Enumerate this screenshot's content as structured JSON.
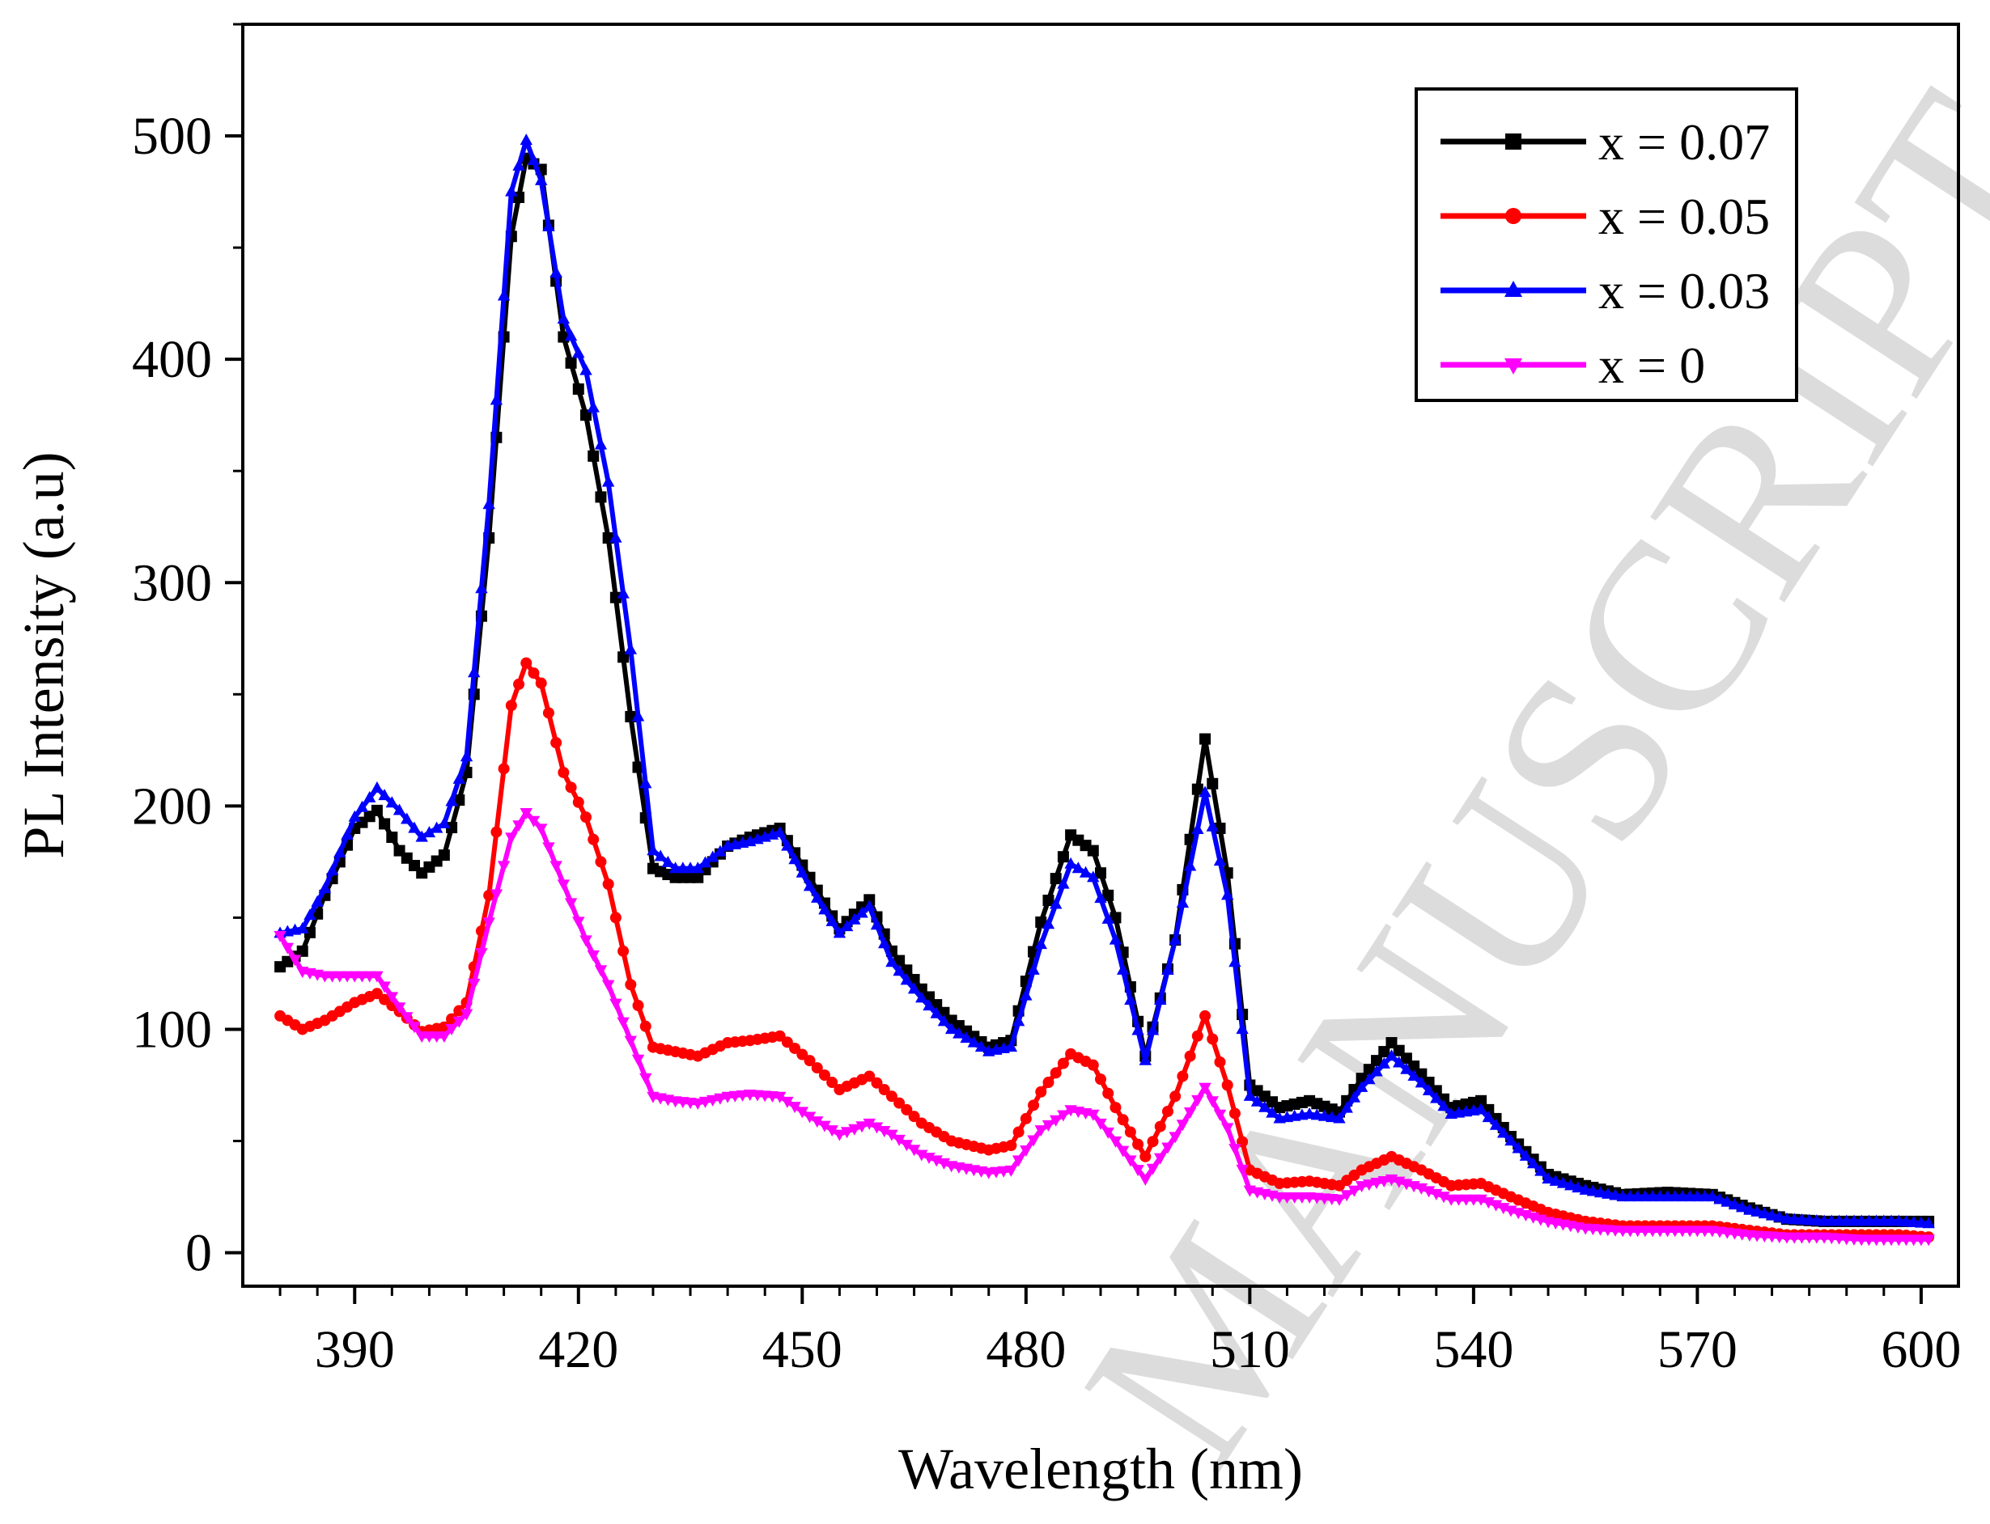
{
  "watermark": "MANUSCRIPT",
  "chart_data": {
    "type": "line",
    "title": "",
    "xlabel": "Wavelength (nm)",
    "ylabel": "PL Intensity (a.u)",
    "xlim": [
      375,
      605
    ],
    "ylim": [
      -15,
      550
    ],
    "xticks": [
      390,
      420,
      450,
      480,
      510,
      540,
      570,
      600
    ],
    "yticks": [
      0,
      100,
      200,
      300,
      400,
      500
    ],
    "grid": false,
    "legend_position": "top-right",
    "x": [
      380,
      383,
      386,
      390,
      393,
      396,
      399,
      402,
      405,
      408,
      411,
      413,
      415,
      418,
      421,
      424,
      427,
      430,
      433,
      436,
      440,
      443,
      447,
      451,
      455,
      459,
      462,
      466,
      470,
      475,
      478,
      482,
      486,
      489,
      492,
      496,
      500,
      504,
      507,
      510,
      514,
      518,
      522,
      525,
      529,
      533,
      537,
      541,
      545,
      550,
      555,
      560,
      566,
      572,
      577,
      582,
      587,
      592,
      597,
      601
    ],
    "series": [
      {
        "name": "x = 0.07",
        "color": "#000000",
        "marker": "square",
        "values": [
          128,
          135,
          160,
          190,
          198,
          180,
          170,
          178,
          215,
          320,
          455,
          490,
          485,
          410,
          375,
          320,
          240,
          172,
          168,
          168,
          182,
          186,
          190,
          168,
          145,
          158,
          135,
          118,
          104,
          92,
          95,
          148,
          187,
          180,
          150,
          88,
          140,
          230,
          170,
          75,
          65,
          68,
          63,
          78,
          94,
          80,
          65,
          68,
          52,
          35,
          30,
          26,
          27,
          26,
          20,
          15,
          14,
          14,
          14,
          14
        ]
      },
      {
        "name": "x = 0.05",
        "color": "#ff0000",
        "marker": "circle",
        "values": [
          106,
          100,
          104,
          112,
          116,
          108,
          99,
          101,
          112,
          160,
          245,
          264,
          255,
          215,
          195,
          165,
          120,
          92,
          90,
          88,
          94,
          95,
          97,
          86,
          73,
          79,
          70,
          58,
          50,
          46,
          48,
          72,
          89,
          84,
          65,
          43,
          70,
          106,
          75,
          37,
          31,
          32,
          30,
          37,
          43,
          37,
          30,
          31,
          25,
          18,
          14,
          12,
          12,
          12,
          10,
          8,
          8,
          8,
          8,
          7
        ]
      },
      {
        "name": "x = 0.03",
        "color": "#0000ff",
        "marker": "triangle-up",
        "values": [
          143,
          145,
          163,
          195,
          208,
          198,
          186,
          192,
          222,
          335,
          475,
          498,
          480,
          418,
          395,
          345,
          270,
          180,
          172,
          172,
          182,
          184,
          188,
          164,
          143,
          155,
          130,
          114,
          100,
          90,
          92,
          138,
          174,
          168,
          140,
          86,
          140,
          206,
          160,
          70,
          60,
          62,
          60,
          74,
          88,
          76,
          62,
          64,
          50,
          33,
          28,
          25,
          25,
          25,
          19,
          15,
          14,
          14,
          14,
          13
        ]
      },
      {
        "name": "x = 0",
        "color": "#ff00ff",
        "marker": "triangle-down",
        "values": [
          142,
          126,
          124,
          124,
          124,
          110,
          97,
          97,
          107,
          148,
          186,
          197,
          190,
          165,
          140,
          120,
          95,
          70,
          68,
          67,
          70,
          71,
          70,
          61,
          53,
          58,
          53,
          44,
          39,
          36,
          37,
          55,
          64,
          62,
          50,
          33,
          52,
          74,
          56,
          28,
          25,
          25,
          24,
          30,
          33,
          29,
          24,
          24,
          19,
          14,
          11,
          10,
          10,
          10,
          8,
          7,
          7,
          6,
          6,
          6
        ]
      }
    ]
  }
}
